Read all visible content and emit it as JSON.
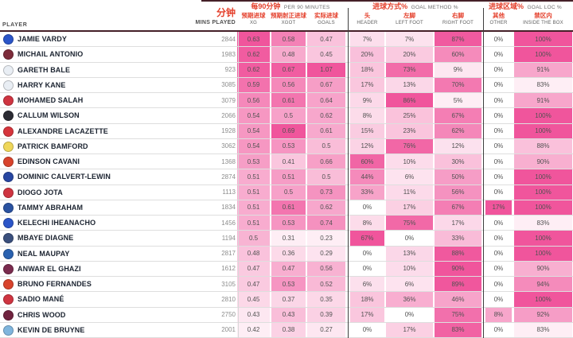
{
  "header": {
    "player_label": "PLAYER",
    "mins_cn": "分钟",
    "mins_en": "MINS PLAYED",
    "groups": [
      {
        "cn": "每90分钟",
        "en": "PER 90 MINUTES"
      },
      {
        "cn": "进球方式%",
        "en": "GOAL METHOD %"
      },
      {
        "cn": "进球区域%",
        "en": "GOAL LOC %"
      }
    ],
    "columns": [
      {
        "key": "xg",
        "cn": "预期进球",
        "en": "XG"
      },
      {
        "key": "xgot",
        "cn": "预期射正进球",
        "en": "XGOT"
      },
      {
        "key": "goals",
        "cn": "实际进球",
        "en": "GOALS"
      },
      {
        "key": "header",
        "cn": "头",
        "en": "HEADER"
      },
      {
        "key": "left_foot",
        "cn": "左脚",
        "en": "LEFT FOOT"
      },
      {
        "key": "right_foot",
        "cn": "右脚",
        "en": "RIGHT FOOT"
      },
      {
        "key": "other",
        "cn": "其他",
        "en": "OTHER"
      },
      {
        "key": "inside_box",
        "cn": "禁区内",
        "en": "INSIDE THE BOX"
      }
    ]
  },
  "colors": {
    "accent_red": "#e4402c",
    "pink_max": "#f0559c",
    "dark_rule": "#452028",
    "row_line": "#dedede"
  },
  "rows": [
    {
      "player": "JAMIE VARDY",
      "club": "leicester-city",
      "badge_color": "#2b55c8",
      "mins": "2844",
      "xg": "0.63",
      "xgot": "0.58",
      "goals": "0.47",
      "header": "7%",
      "left_foot": "7%",
      "right_foot": "87%",
      "other": "0%",
      "inside_box": "100%"
    },
    {
      "player": "MICHAIL ANTONIO",
      "club": "west-ham",
      "badge_color": "#7d2c3b",
      "mins": "1983",
      "xg": "0.62",
      "xgot": "0.48",
      "goals": "0.45",
      "header": "20%",
      "left_foot": "20%",
      "right_foot": "60%",
      "other": "0%",
      "inside_box": "100%"
    },
    {
      "player": "GARETH BALE",
      "club": "tottenham",
      "badge_color": "#e9eef4",
      "mins": "923",
      "xg": "0.62",
      "xgot": "0.67",
      "goals": "1.07",
      "header": "18%",
      "left_foot": "73%",
      "right_foot": "9%",
      "other": "0%",
      "inside_box": "91%"
    },
    {
      "player": "HARRY KANE",
      "club": "tottenham",
      "badge_color": "#e9eef4",
      "mins": "3085",
      "xg": "0.59",
      "xgot": "0.56",
      "goals": "0.67",
      "header": "17%",
      "left_foot": "13%",
      "right_foot": "70%",
      "other": "0%",
      "inside_box": "83%"
    },
    {
      "player": "MOHAMED SALAH",
      "club": "liverpool",
      "badge_color": "#cf3440",
      "mins": "3079",
      "xg": "0.56",
      "xgot": "0.61",
      "goals": "0.64",
      "header": "9%",
      "left_foot": "86%",
      "right_foot": "5%",
      "other": "0%",
      "inside_box": "91%"
    },
    {
      "player": "CALLUM WILSON",
      "club": "newcastle",
      "badge_color": "#2b2b33",
      "mins": "2066",
      "xg": "0.54",
      "xgot": "0.5",
      "goals": "0.62",
      "header": "8%",
      "left_foot": "25%",
      "right_foot": "67%",
      "other": "0%",
      "inside_box": "100%"
    },
    {
      "player": "ALEXANDRE LACAZETTE",
      "club": "arsenal",
      "badge_color": "#d6353c",
      "mins": "1928",
      "xg": "0.54",
      "xgot": "0.69",
      "goals": "0.61",
      "header": "15%",
      "left_foot": "23%",
      "right_foot": "62%",
      "other": "0%",
      "inside_box": "100%"
    },
    {
      "player": "PATRICK BAMFORD",
      "club": "leeds",
      "badge_color": "#efd75a",
      "mins": "3062",
      "xg": "0.54",
      "xgot": "0.53",
      "goals": "0.5",
      "header": "12%",
      "left_foot": "76%",
      "right_foot": "12%",
      "other": "0%",
      "inside_box": "88%"
    },
    {
      "player": "EDINSON CAVANI",
      "club": "man-utd",
      "badge_color": "#d8432c",
      "mins": "1368",
      "xg": "0.53",
      "xgot": "0.41",
      "goals": "0.66",
      "header": "60%",
      "left_foot": "10%",
      "right_foot": "30%",
      "other": "0%",
      "inside_box": "90%"
    },
    {
      "player": "DOMINIC CALVERT-LEWIN",
      "club": "everton",
      "badge_color": "#2847a2",
      "mins": "2874",
      "xg": "0.51",
      "xgot": "0.51",
      "goals": "0.5",
      "header": "44%",
      "left_foot": "6%",
      "right_foot": "50%",
      "other": "0%",
      "inside_box": "100%"
    },
    {
      "player": "DIOGO JOTA",
      "club": "liverpool",
      "badge_color": "#cf3440",
      "mins": "1113",
      "xg": "0.51",
      "xgot": "0.5",
      "goals": "0.73",
      "header": "33%",
      "left_foot": "11%",
      "right_foot": "56%",
      "other": "0%",
      "inside_box": "100%"
    },
    {
      "player": "TAMMY ABRAHAM",
      "club": "chelsea",
      "badge_color": "#2a52a0",
      "mins": "1834",
      "xg": "0.51",
      "xgot": "0.61",
      "goals": "0.62",
      "header": "0%",
      "left_foot": "17%",
      "right_foot": "67%",
      "other": "17%",
      "inside_box": "100%"
    },
    {
      "player": "KELECHI IHEANACHO",
      "club": "leicester-city",
      "badge_color": "#2b55c8",
      "mins": "1456",
      "xg": "0.51",
      "xgot": "0.53",
      "goals": "0.74",
      "header": "8%",
      "left_foot": "75%",
      "right_foot": "17%",
      "other": "0%",
      "inside_box": "83%"
    },
    {
      "player": "MBAYE DIAGNE",
      "club": "west-brom",
      "badge_color": "#3a4f7c",
      "mins": "1194",
      "xg": "0.5",
      "xgot": "0.31",
      "goals": "0.23",
      "header": "67%",
      "left_foot": "0%",
      "right_foot": "33%",
      "other": "0%",
      "inside_box": "100%"
    },
    {
      "player": "NEAL MAUPAY",
      "club": "brighton",
      "badge_color": "#2a62b0",
      "mins": "2817",
      "xg": "0.48",
      "xgot": "0.36",
      "goals": "0.29",
      "header": "0%",
      "left_foot": "13%",
      "right_foot": "88%",
      "other": "0%",
      "inside_box": "100%"
    },
    {
      "player": "ANWAR EL GHAZI",
      "club": "aston-villa",
      "badge_color": "#7a2b4e",
      "mins": "1612",
      "xg": "0.47",
      "xgot": "0.47",
      "goals": "0.56",
      "header": "0%",
      "left_foot": "10%",
      "right_foot": "90%",
      "other": "0%",
      "inside_box": "90%"
    },
    {
      "player": "BRUNO FERNANDES",
      "club": "man-utd",
      "badge_color": "#d8432c",
      "mins": "3105",
      "xg": "0.47",
      "xgot": "0.53",
      "goals": "0.52",
      "header": "6%",
      "left_foot": "6%",
      "right_foot": "89%",
      "other": "0%",
      "inside_box": "94%"
    },
    {
      "player": "SADIO MANÉ",
      "club": "liverpool",
      "badge_color": "#cf3440",
      "mins": "2810",
      "xg": "0.45",
      "xgot": "0.37",
      "goals": "0.35",
      "header": "18%",
      "left_foot": "36%",
      "right_foot": "46%",
      "other": "0%",
      "inside_box": "100%"
    },
    {
      "player": "CHRIS WOOD",
      "club": "burnley",
      "badge_color": "#70233f",
      "mins": "2750",
      "xg": "0.43",
      "xgot": "0.43",
      "goals": "0.39",
      "header": "17%",
      "left_foot": "0%",
      "right_foot": "75%",
      "other": "8%",
      "inside_box": "92%"
    },
    {
      "player": "KEVIN DE BRUYNE",
      "club": "man-city",
      "badge_color": "#7fb5dd",
      "mins": "2001",
      "xg": "0.42",
      "xgot": "0.38",
      "goals": "0.27",
      "header": "0%",
      "left_foot": "17%",
      "right_foot": "83%",
      "other": "0%",
      "inside_box": "83%"
    }
  ]
}
